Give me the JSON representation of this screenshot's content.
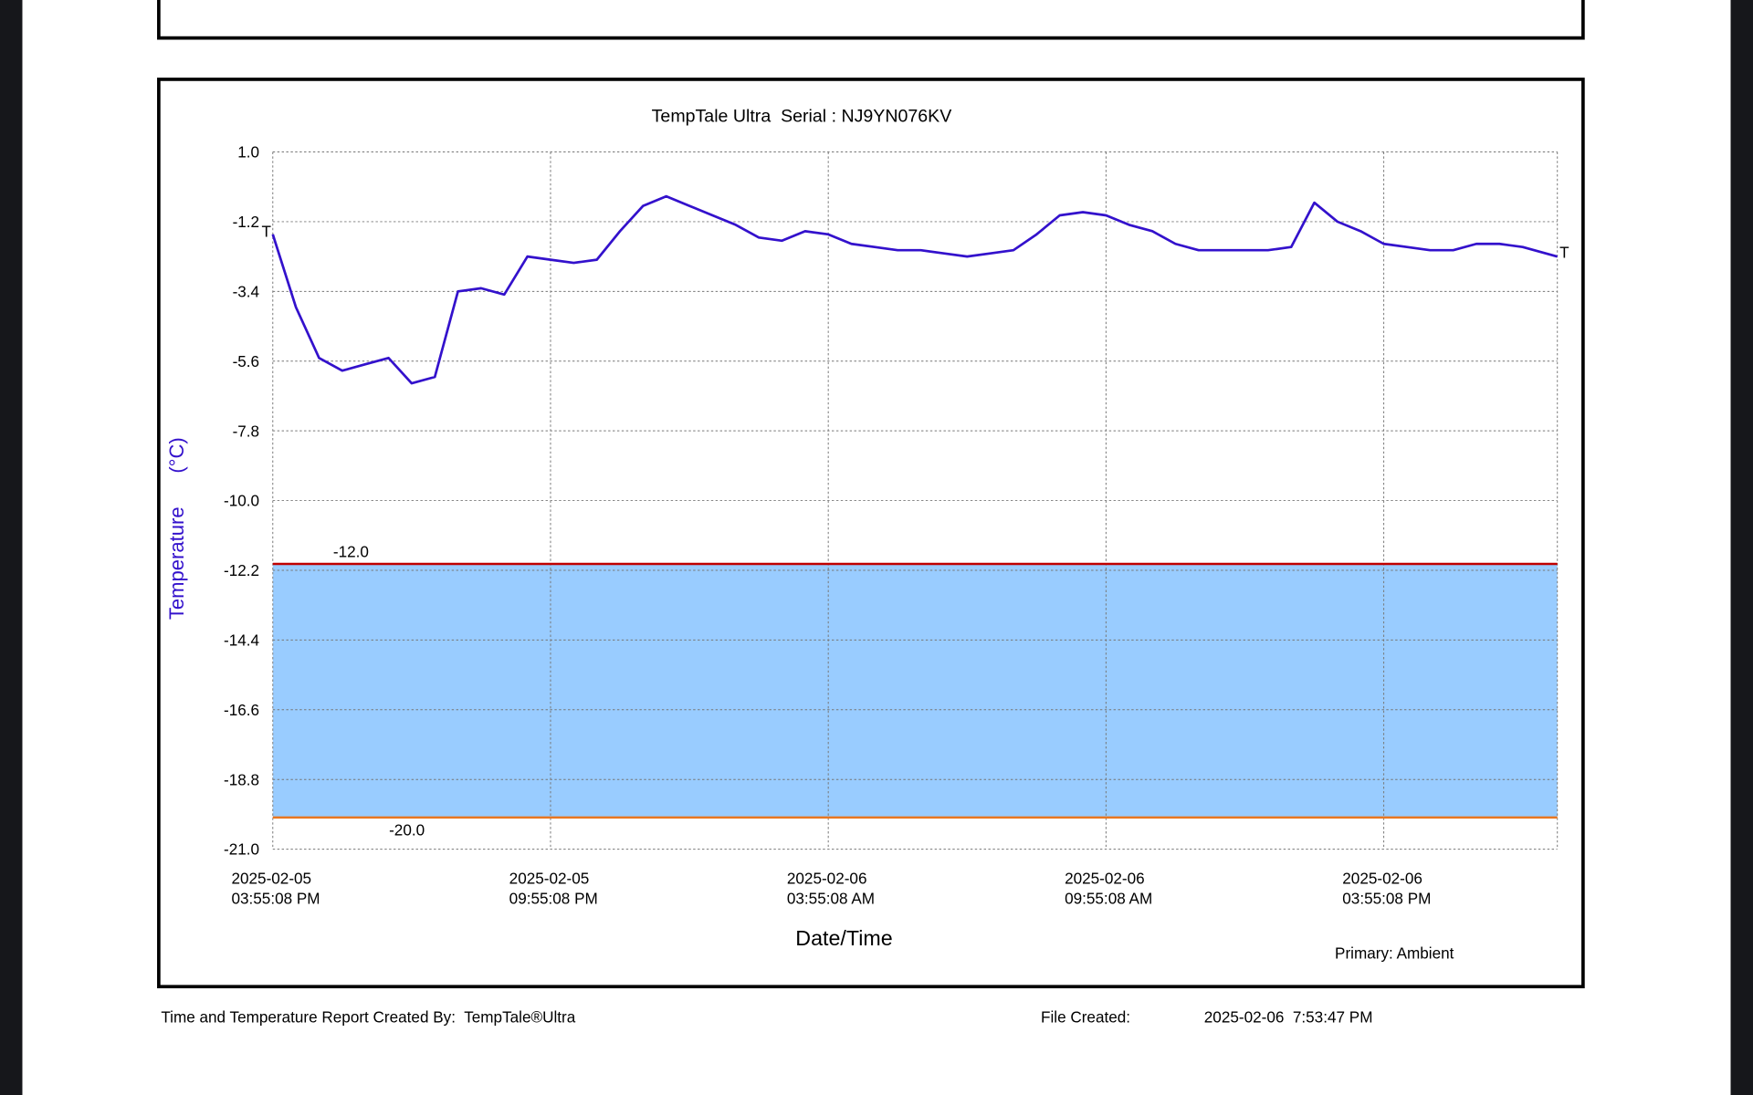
{
  "chart_data": {
    "type": "line",
    "title": "TempTale Ultra  Serial : NJ9YN076KV",
    "ylabel": "Temperature      (°C)",
    "xlabel": "Date/Time",
    "legend_note": "Primary: Ambient",
    "line_end_labels": [
      "T",
      "T"
    ],
    "x": [
      "2025-02-05 15:55:08",
      "2025-02-05 16:25:08",
      "2025-02-05 16:55:08",
      "2025-02-05 17:25:08",
      "2025-02-05 17:55:08",
      "2025-02-05 18:25:08",
      "2025-02-05 18:55:08",
      "2025-02-05 19:25:08",
      "2025-02-05 19:55:08",
      "2025-02-05 20:25:08",
      "2025-02-05 20:55:08",
      "2025-02-05 21:25:08",
      "2025-02-05 21:55:08",
      "2025-02-05 22:25:08",
      "2025-02-05 22:55:08",
      "2025-02-05 23:25:08",
      "2025-02-05 23:55:08",
      "2025-02-06 00:25:08",
      "2025-02-06 00:55:08",
      "2025-02-06 01:25:08",
      "2025-02-06 01:55:08",
      "2025-02-06 02:25:08",
      "2025-02-06 02:55:08",
      "2025-02-06 03:25:08",
      "2025-02-06 03:55:08",
      "2025-02-06 04:25:08",
      "2025-02-06 04:55:08",
      "2025-02-06 05:25:08",
      "2025-02-06 05:55:08",
      "2025-02-06 06:25:08",
      "2025-02-06 06:55:08",
      "2025-02-06 07:25:08",
      "2025-02-06 07:55:08",
      "2025-02-06 08:25:08",
      "2025-02-06 08:55:08",
      "2025-02-06 09:25:08",
      "2025-02-06 09:55:08",
      "2025-02-06 10:25:08",
      "2025-02-06 10:55:08",
      "2025-02-06 11:25:08",
      "2025-02-06 11:55:08",
      "2025-02-06 12:25:08",
      "2025-02-06 12:55:08",
      "2025-02-06 13:25:08",
      "2025-02-06 13:55:08",
      "2025-02-06 14:25:08",
      "2025-02-06 14:55:08",
      "2025-02-06 15:25:08",
      "2025-02-06 15:55:08",
      "2025-02-06 16:25:08",
      "2025-02-06 16:55:08",
      "2025-02-06 17:25:08",
      "2025-02-06 17:55:08",
      "2025-02-06 18:25:08",
      "2025-02-06 18:55:08",
      "2025-02-06 19:25:08",
      "2025-02-06 19:40:08"
    ],
    "series": [
      {
        "name": "Ambient",
        "color": "#3311cc",
        "values": [
          -1.6,
          -3.9,
          -5.5,
          -5.9,
          -5.7,
          -5.5,
          -6.3,
          -6.1,
          -3.4,
          -3.3,
          -3.5,
          -2.3,
          -2.4,
          -2.5,
          -2.4,
          -1.5,
          -0.7,
          -0.4,
          -0.7,
          -1.0,
          -1.3,
          -1.7,
          -1.8,
          -1.5,
          -1.6,
          -1.9,
          -2.0,
          -2.1,
          -2.1,
          -2.2,
          -2.3,
          -2.2,
          -2.1,
          -1.6,
          -1.0,
          -0.9,
          -1.0,
          -1.3,
          -1.5,
          -1.9,
          -2.1,
          -2.1,
          -2.1,
          -2.1,
          -2.0,
          -0.6,
          -1.2,
          -1.5,
          -1.9,
          -2.0,
          -2.1,
          -2.1,
          -1.9,
          -1.9,
          -2.0,
          -2.2,
          -2.3
        ]
      }
    ],
    "xlim": [
      "2025-02-05 15:55:08",
      "2025-02-06 19:40:08"
    ],
    "xticks": [
      {
        "value": "2025-02-05 15:55:08",
        "label": [
          "2025-02-05",
          "03:55:08 PM"
        ]
      },
      {
        "value": "2025-02-05 21:55:08",
        "label": [
          "2025-02-05",
          "09:55:08 PM"
        ]
      },
      {
        "value": "2025-02-06 03:55:08",
        "label": [
          "2025-02-06",
          "03:55:08 AM"
        ]
      },
      {
        "value": "2025-02-06 09:55:08",
        "label": [
          "2025-02-06",
          "09:55:08 AM"
        ]
      },
      {
        "value": "2025-02-06 15:55:08",
        "label": [
          "2025-02-06",
          "03:55:08 PM"
        ]
      }
    ],
    "ylim": [
      -21,
      1
    ],
    "yticks": [
      {
        "value": 1,
        "label": "1.0"
      },
      -1.2,
      -3.4,
      -5.6,
      -7.8,
      {
        "value": -10,
        "label": "-10.0"
      },
      -12.2,
      -14.4,
      -16.6,
      -18.8,
      {
        "value": -21,
        "label": "-21.0"
      }
    ],
    "grid": true,
    "thresholds": [
      {
        "value": -12,
        "label": "-12.0",
        "color": "#c00000"
      },
      {
        "value": -20,
        "label": "-20.0",
        "color": "#e87722"
      }
    ],
    "band_color": "#99ccff"
  },
  "footer": {
    "created_by": "Time and Temperature Report Created By:  TempTale®Ultra",
    "file_created_label": "File Created:",
    "file_created": "2025-02-06  7:53:47 PM"
  }
}
